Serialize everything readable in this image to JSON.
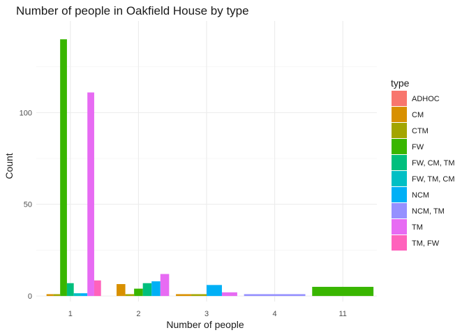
{
  "chart_data": {
    "type": "bar",
    "title": "Number of people in Oakfield House by type",
    "xlabel": "Number of people",
    "ylabel": "Count",
    "categories": [
      "1",
      "2",
      "3",
      "4",
      "11"
    ],
    "y_ticks": [
      0,
      50,
      100
    ],
    "ylim": [
      -3,
      150
    ],
    "grid": true,
    "legend_title": "type",
    "legend_position": "right",
    "series": [
      {
        "name": "ADHOC",
        "color": "#F8766D",
        "values": [
          0,
          0,
          null,
          null,
          null
        ]
      },
      {
        "name": "CM",
        "color": "#D89000",
        "values": [
          1,
          6.5,
          1,
          null,
          null
        ]
      },
      {
        "name": "CTM",
        "color": "#A3A500",
        "values": [
          1,
          1,
          1,
          null,
          null
        ]
      },
      {
        "name": "FW",
        "color": "#39B600",
        "values": [
          140,
          4,
          null,
          null,
          5
        ]
      },
      {
        "name": "FW, CM, TM",
        "color": "#00BF7D",
        "values": [
          7,
          7,
          null,
          null,
          null
        ]
      },
      {
        "name": "FW, TM, CM",
        "color": "#00BFC4",
        "values": [
          1.5,
          null,
          null,
          null,
          null
        ]
      },
      {
        "name": "NCM",
        "color": "#00B0F6",
        "values": [
          1.5,
          8,
          6,
          null,
          null
        ]
      },
      {
        "name": "NCM, TM",
        "color": "#9590FF",
        "values": [
          null,
          null,
          null,
          1,
          null
        ]
      },
      {
        "name": "TM",
        "color": "#E76BF3",
        "values": [
          111,
          12,
          2,
          null,
          null
        ]
      },
      {
        "name": "TM, FW",
        "color": "#FF62BC",
        "values": [
          8.5,
          null,
          null,
          null,
          null
        ]
      }
    ]
  }
}
